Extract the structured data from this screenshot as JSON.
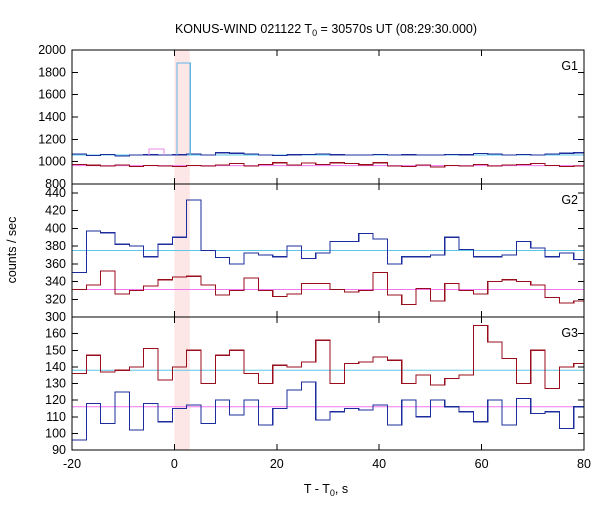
{
  "chart_data": {
    "type": "line",
    "title_prefix": "KONUS-WIND 021122 T",
    "title_sub": "0",
    "title_suffix": " = 30570s UT (08:29:30.000)",
    "xlabel_prefix": "T - T",
    "xlabel_sub": "0",
    "xlabel_suffix": ", s",
    "ylabel": "counts / sec",
    "xlim": [
      -20,
      80
    ],
    "x_ticks": [
      -20,
      0,
      20,
      40,
      60,
      80
    ],
    "x_tick_labels": [
      "-20",
      "0",
      "20",
      "40",
      "60",
      "80"
    ],
    "highlight_band": [
      0,
      3
    ],
    "colors": {
      "highlight": "#fde6e6",
      "burst": "#5fb4e6",
      "burst_alt": "#e989e6",
      "blue": "#1d2c9c",
      "red": "#9a0d1c",
      "bg_blue": "#5fc7e6",
      "bg_pink": "#ef76ef"
    },
    "panels": [
      {
        "label": "G1",
        "ylim": [
          800,
          2000
        ],
        "y_ticks": [
          800,
          1000,
          1200,
          1400,
          1600,
          1800,
          2000
        ],
        "y_tick_labels": [
          "800",
          "1000",
          "1200",
          "1400",
          "1600",
          "1800",
          "2000"
        ],
        "background_levels": [
          1060,
          965
        ],
        "series": [
          {
            "color": "blue",
            "x": [
              -20,
              -17.2,
              -14.4,
              -11.6,
              -8.8,
              -6,
              -3.2,
              -0.4,
              2.4,
              5.2,
              8,
              10.8,
              13.6,
              16.4,
              19.2,
              22,
              24.8,
              27.6,
              30.4,
              33.2,
              36,
              38.8,
              41.6,
              44.4,
              47.2,
              50,
              52.8,
              55.6,
              58.4,
              61.2,
              64,
              66.8,
              69.6,
              72.4,
              75.2,
              78,
              80
            ],
            "values": [
              1070,
              1055,
              1065,
              1050,
              1058,
              1062,
              1060,
              1062,
              1068,
              1060,
              1080,
              1075,
              1068,
              1060,
              1055,
              1062,
              1064,
              1070,
              1062,
              1058,
              1060,
              1064,
              1058,
              1062,
              1058,
              1060,
              1064,
              1062,
              1074,
              1068,
              1058,
              1064,
              1060,
              1068,
              1075,
              1080,
              1080
            ]
          },
          {
            "color": "red",
            "x": [
              -20,
              -17.2,
              -14.4,
              -11.6,
              -8.8,
              -6,
              -3.2,
              -0.4,
              2.4,
              5.2,
              8,
              10.8,
              13.6,
              16.4,
              19.2,
              22,
              24.8,
              27.6,
              30.4,
              33.2,
              36,
              38.8,
              41.6,
              44.4,
              47.2,
              50,
              52.8,
              55.6,
              58.4,
              61.2,
              64,
              66.8,
              69.6,
              72.4,
              75.2,
              78,
              80
            ],
            "values": [
              975,
              968,
              962,
              970,
              958,
              966,
              962,
              958,
              965,
              960,
              970,
              985,
              962,
              975,
              990,
              970,
              988,
              975,
              990,
              982,
              972,
              990,
              962,
              958,
              970,
              952,
              966,
              960,
              975,
              962,
              970,
              975,
              985,
              965,
              958,
              962,
              962
            ]
          },
          {
            "color": "burst_alt",
            "x": [
              -5,
              -2
            ],
            "values": [
              1115
            ]
          },
          {
            "color": "burst",
            "x": [
              0.5,
              3.1
            ],
            "values": [
              1885
            ]
          }
        ]
      },
      {
        "label": "G2",
        "ylim": [
          300,
          450
        ],
        "y_ticks": [
          300,
          320,
          340,
          360,
          380,
          400,
          420,
          440
        ],
        "y_tick_labels": [
          "300",
          "320",
          "340",
          "360",
          "380",
          "400",
          "420",
          "440"
        ],
        "background_levels": [
          375,
          331
        ],
        "series": [
          {
            "color": "blue",
            "x": [
              -20,
              -17.2,
              -14.4,
              -11.6,
              -8.8,
              -6,
              -3.2,
              -0.4,
              2.4,
              5.2,
              8,
              10.8,
              13.6,
              16.4,
              19.2,
              22,
              24.8,
              27.6,
              30.4,
              33.2,
              36,
              38.8,
              41.6,
              44.4,
              47.2,
              50,
              52.8,
              55.6,
              58.4,
              61.2,
              64,
              66.8,
              69.6,
              72.4,
              75.2,
              78,
              80
            ],
            "values": [
              350,
              397,
              395,
              382,
              380,
              368,
              382,
              390,
              432,
              375,
              367,
              360,
              372,
              370,
              368,
              380,
              366,
              372,
              385,
              385,
              394,
              388,
              360,
              368,
              368,
              370,
              390,
              376,
              368,
              368,
              370,
              385,
              378,
              368,
              372,
              365,
              365
            ]
          },
          {
            "color": "red",
            "x": [
              -20,
              -17.2,
              -14.4,
              -11.6,
              -8.8,
              -6,
              -3.2,
              -0.4,
              2.4,
              5.2,
              8,
              10.8,
              13.6,
              16.4,
              19.2,
              22,
              24.8,
              27.6,
              30.4,
              33.2,
              36,
              38.8,
              41.6,
              44.4,
              47.2,
              50,
              52.8,
              55.6,
              58.4,
              61.2,
              64,
              66.8,
              69.6,
              72.4,
              75.2,
              78,
              80
            ],
            "values": [
              331,
              336,
              352,
              326,
              330,
              335,
              342,
              345,
              346,
              336,
              325,
              330,
              344,
              330,
              323,
              326,
              338,
              338,
              331,
              328,
              330,
              350,
              325,
              314,
              332,
              318,
              338,
              330,
              326,
              340,
              342,
              340,
              336,
              322,
              316,
              318,
              318
            ]
          }
        ]
      },
      {
        "label": "G3",
        "ylim": [
          90,
          170
        ],
        "y_ticks": [
          90,
          100,
          110,
          120,
          130,
          140,
          150,
          160
        ],
        "y_tick_labels": [
          "90",
          "100",
          "110",
          "120",
          "130",
          "140",
          "150",
          "160"
        ],
        "background_levels": [
          138,
          116
        ],
        "series": [
          {
            "color": "red",
            "x": [
              -20,
              -17.2,
              -14.4,
              -11.6,
              -8.8,
              -6,
              -3.2,
              -0.4,
              2.4,
              5.2,
              8,
              10.8,
              13.6,
              16.4,
              19.2,
              22,
              24.8,
              27.6,
              30.4,
              33.2,
              36,
              38.8,
              41.6,
              44.4,
              47.2,
              50,
              52.8,
              55.6,
              58.4,
              61.2,
              64,
              66.8,
              69.6,
              72.4,
              75.2,
              78,
              80
            ],
            "values": [
              136,
              147,
              137,
              138,
              140,
              151,
              132,
              140,
              150,
              130,
              147,
              150,
              136,
              130,
              141,
              140,
              143,
              156,
              130,
              142,
              143,
              146,
              144,
              130,
              135,
              129,
              133,
              135,
              165,
              155,
              145,
              130,
              150,
              127,
              140,
              142,
              142
            ]
          },
          {
            "color": "blue",
            "x": [
              -20,
              -17.2,
              -14.4,
              -11.6,
              -8.8,
              -6,
              -3.2,
              -0.4,
              2.4,
              5.2,
              8,
              10.8,
              13.6,
              16.4,
              19.2,
              22,
              24.8,
              27.6,
              30.4,
              33.2,
              36,
              38.8,
              41.6,
              44.4,
              47.2,
              50,
              52.8,
              55.6,
              58.4,
              61.2,
              64,
              66.8,
              69.6,
              72.4,
              75.2,
              78,
              80
            ],
            "values": [
              96,
              118,
              106,
              125,
              102,
              118,
              107,
              115,
              117,
              106,
              120,
              111,
              120,
              105,
              115,
              126,
              131,
              108,
              113,
              115,
              114,
              117,
              105,
              120,
              110,
              120,
              116,
              113,
              107,
              120,
              105,
              121,
              112,
              113,
              103,
              116,
              116
            ]
          }
        ]
      }
    ]
  }
}
